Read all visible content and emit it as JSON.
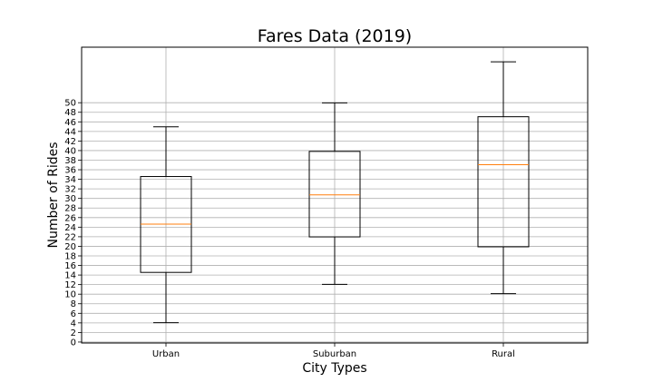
{
  "chart_data": {
    "type": "box",
    "title": "Fares Data (2019)",
    "xlabel": "City Types",
    "ylabel": "Number of Rides",
    "categories": [
      "Urban",
      "Suburban",
      "Rural"
    ],
    "boxes": [
      {
        "category": "Urban",
        "whisker_low": 4.05,
        "q1": 14.55,
        "median": 24.64,
        "q3": 34.58,
        "whisker_high": 44.97
      },
      {
        "category": "Suburban",
        "whisker_low": 12.05,
        "q1": 21.97,
        "median": 30.75,
        "q3": 39.83,
        "whisker_high": 49.96
      },
      {
        "category": "Rural",
        "whisker_low": 10.11,
        "q1": 19.9,
        "median": 37.05,
        "q3": 47.07,
        "whisker_high": 58.55
      }
    ],
    "yticks": [
      0,
      2,
      4,
      6,
      8,
      10,
      12,
      14,
      16,
      18,
      20,
      22,
      24,
      26,
      28,
      30,
      32,
      34,
      36,
      38,
      40,
      42,
      44,
      46,
      48,
      50
    ],
    "ylim": [
      -0.2,
      61.6
    ],
    "grid": true,
    "colors": {
      "box": "#000000",
      "median": "#ff7f0e",
      "grid": "#b0b0b0"
    }
  }
}
